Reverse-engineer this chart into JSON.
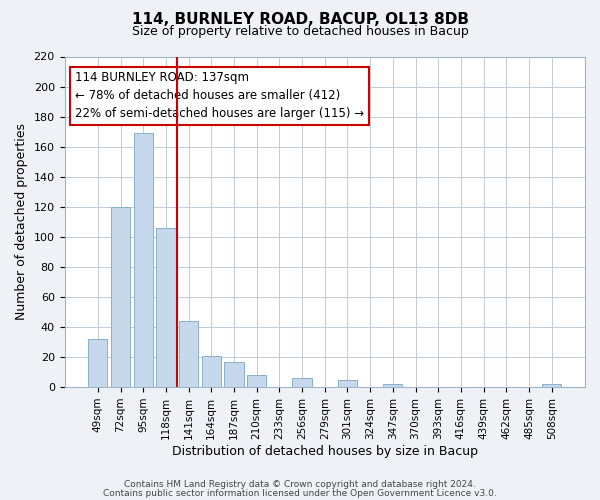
{
  "title": "114, BURNLEY ROAD, BACUP, OL13 8DB",
  "subtitle": "Size of property relative to detached houses in Bacup",
  "xlabel": "Distribution of detached houses by size in Bacup",
  "ylabel": "Number of detached properties",
  "categories": [
    "49sqm",
    "72sqm",
    "95sqm",
    "118sqm",
    "141sqm",
    "164sqm",
    "187sqm",
    "210sqm",
    "233sqm",
    "256sqm",
    "279sqm",
    "301sqm",
    "324sqm",
    "347sqm",
    "370sqm",
    "393sqm",
    "416sqm",
    "439sqm",
    "462sqm",
    "485sqm",
    "508sqm"
  ],
  "values": [
    32,
    120,
    169,
    106,
    44,
    21,
    17,
    8,
    0,
    6,
    0,
    5,
    0,
    2,
    0,
    0,
    0,
    0,
    0,
    0,
    2
  ],
  "bar_color": "#c6d9ec",
  "bar_edge_color": "#8ab0cc",
  "vline_x_index": 4,
  "vline_color": "#cc0000",
  "annotation_lines": [
    "114 BURNLEY ROAD: 137sqm",
    "← 78% of detached houses are smaller (412)",
    "22% of semi-detached houses are larger (115) →"
  ],
  "annotation_box_color": "#ffffff",
  "annotation_box_edge_color": "#cc0000",
  "ylim": [
    0,
    220
  ],
  "yticks": [
    0,
    20,
    40,
    60,
    80,
    100,
    120,
    140,
    160,
    180,
    200,
    220
  ],
  "footer_line1": "Contains HM Land Registry data © Crown copyright and database right 2024.",
  "footer_line2": "Contains public sector information licensed under the Open Government Licence v3.0.",
  "bg_color": "#eef2f7",
  "plot_bg_color": "#ffffff",
  "grid_color": "#c0ccd8"
}
